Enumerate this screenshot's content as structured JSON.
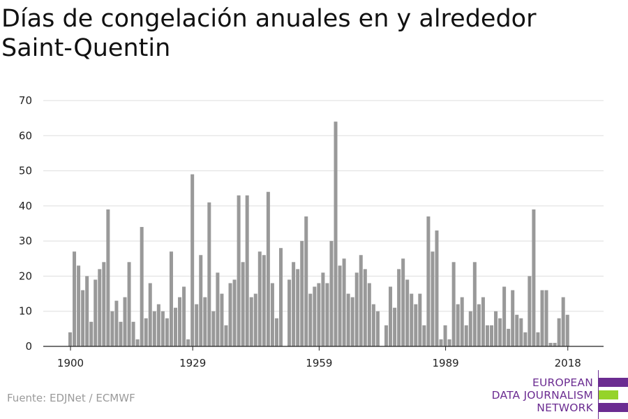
{
  "title": "Días de congelación anuales en y alrededor Saint-Quentin",
  "source": "Fuente: EDJNet / ECMWF",
  "logo": {
    "line1": "EUROPEAN",
    "line2": "DATA JOURNALISM",
    "line3": "NETWORK"
  },
  "colors": {
    "bar": "#999999",
    "grid": "#dddddd",
    "axis": "#222222",
    "logo_purple": "#6b2c91",
    "logo_green": "#95d32a"
  },
  "chart_data": {
    "type": "bar",
    "title": "Días de congelación anuales en y alrededor Saint-Quentin",
    "xlabel": "",
    "ylabel": "",
    "ylim": [
      0,
      70
    ],
    "yticks": [
      0,
      10,
      20,
      30,
      40,
      50,
      60,
      70
    ],
    "xticks": [
      1900,
      1929,
      1959,
      1989,
      2018
    ],
    "grid": true,
    "start_year": 1900,
    "values": [
      4,
      27,
      23,
      16,
      20,
      7,
      19,
      22,
      24,
      39,
      10,
      13,
      7,
      14,
      24,
      7,
      2,
      34,
      8,
      18,
      10,
      12,
      10,
      8,
      27,
      11,
      14,
      17,
      2,
      49,
      12,
      26,
      14,
      41,
      10,
      21,
      15,
      6,
      18,
      19,
      43,
      24,
      43,
      14,
      15,
      27,
      26,
      44,
      18,
      8,
      28,
      0,
      19,
      24,
      22,
      30,
      37,
      15,
      17,
      18,
      21,
      18,
      30,
      64,
      23,
      25,
      15,
      14,
      21,
      26,
      22,
      18,
      12,
      10,
      0,
      6,
      17,
      11,
      22,
      25,
      19,
      15,
      12,
      15,
      6,
      37,
      27,
      33,
      2,
      6,
      2,
      24,
      12,
      14,
      6,
      10,
      24,
      12,
      14,
      6,
      6,
      10,
      8,
      17,
      5,
      16,
      9,
      8,
      4,
      20,
      39,
      4,
      16,
      16,
      1,
      1,
      8,
      14,
      9
    ]
  }
}
